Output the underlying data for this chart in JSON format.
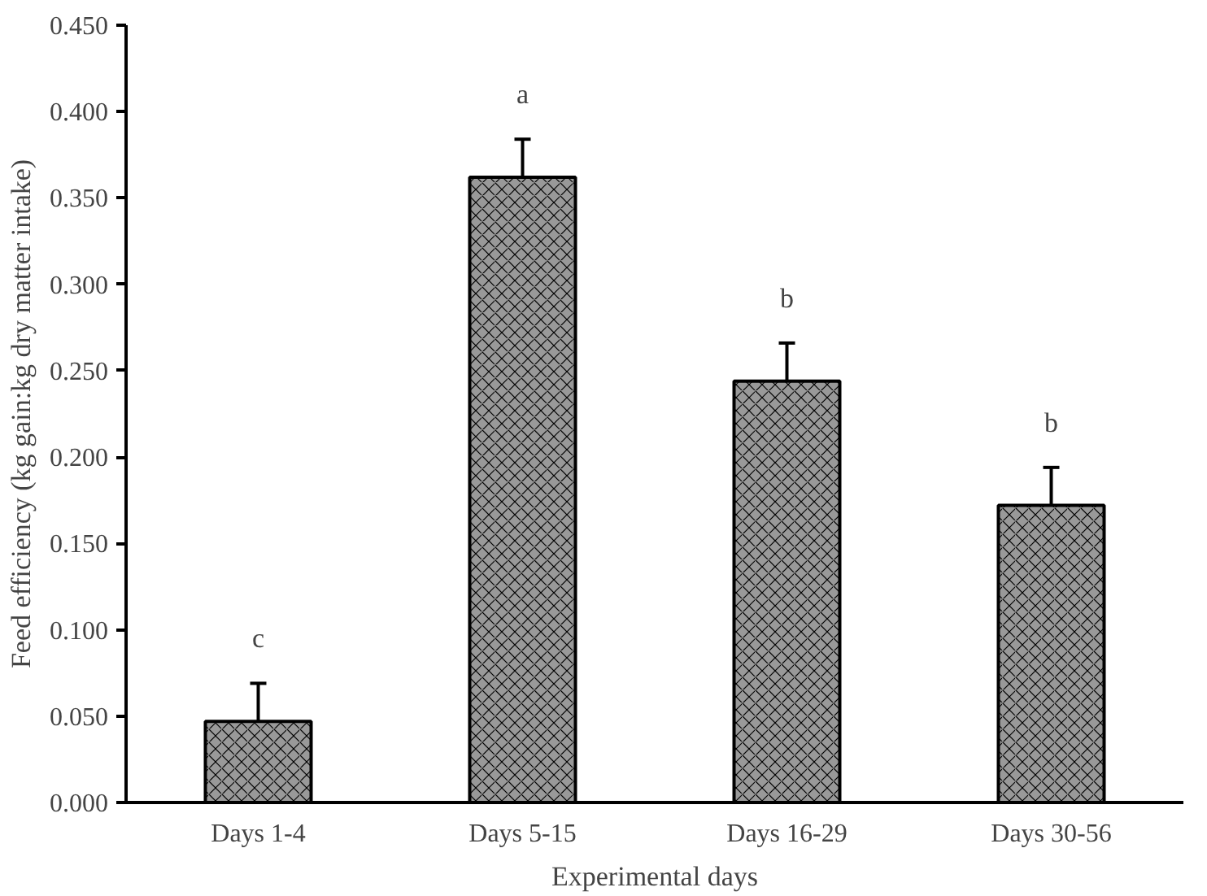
{
  "chart_data": {
    "type": "bar",
    "xlabel": "Experimental days",
    "ylabel": "Feed efficiency (kg gain:kg dry matter intake)",
    "categories": [
      "Days 1-4",
      "Days 5-15",
      "Days 16-29",
      "Days 30-56"
    ],
    "values": [
      0.047,
      0.362,
      0.244,
      0.172
    ],
    "errors": [
      0.022,
      0.022,
      0.022,
      0.022
    ],
    "color": "#999999",
    "ylim": [
      0,
      0.45
    ],
    "yticks": [
      {
        "value": 0,
        "label": "0.000"
      },
      {
        "value": 0.05,
        "label": "0.050"
      },
      {
        "value": 0.1,
        "label": "0.100"
      },
      {
        "value": 0.15,
        "label": "0.150"
      },
      {
        "value": 0.2,
        "label": "0.200"
      },
      {
        "value": 0.25,
        "label": "0.250"
      },
      {
        "value": 0.3,
        "label": "0.300"
      },
      {
        "value": 0.35,
        "label": "0.350"
      },
      {
        "value": 0.4,
        "label": "0.400"
      },
      {
        "value": 0.45,
        "label": "0.450"
      }
    ],
    "annotations": [
      "c",
      "a",
      "b",
      "b"
    ],
    "grid": false
  }
}
